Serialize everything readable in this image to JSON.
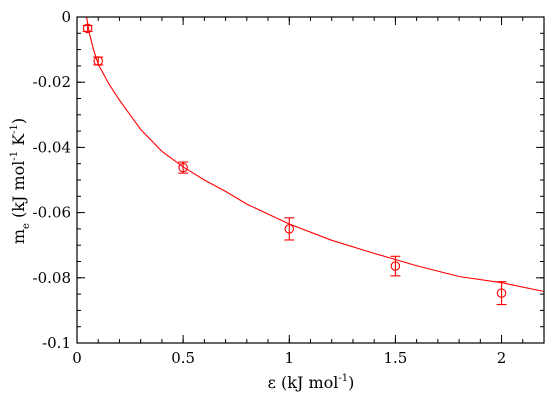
{
  "chart_data": {
    "type": "scatter",
    "title": "",
    "xlabel": {
      "main": "ε (kJ mol",
      "sup": "-1",
      "close": ")"
    },
    "ylabel": {
      "main": "m",
      "sub": "e",
      "unit_open": " (kJ mol",
      "sup1": "-1",
      "mid": " K",
      "sup2": "-1",
      "close": ")"
    },
    "xlim": [
      0,
      2.2
    ],
    "ylim": [
      -0.1,
      0
    ],
    "x_ticks": [
      {
        "value": 0,
        "label": "0"
      },
      {
        "value": 0.5,
        "label": "0.5"
      },
      {
        "value": 1,
        "label": "1"
      },
      {
        "value": 1.5,
        "label": "1.5"
      },
      {
        "value": 2,
        "label": "2"
      }
    ],
    "y_ticks": [
      {
        "value": 0,
        "label": "0"
      },
      {
        "value": -0.02,
        "label": "-0.02"
      },
      {
        "value": -0.04,
        "label": "-0.04"
      },
      {
        "value": -0.06,
        "label": "-0.06"
      },
      {
        "value": -0.08,
        "label": "-0.08"
      },
      {
        "value": -0.1,
        "label": "-0.1"
      }
    ],
    "x_minor_step": 0.1,
    "y_minor_step": 0.005,
    "series": [
      {
        "marker": "circle",
        "color": "#ff0000",
        "points": [
          {
            "x": 0.05,
            "y": -0.0035,
            "err": 0.0009
          },
          {
            "x": 0.1,
            "y": -0.0135,
            "err": 0.0012
          },
          {
            "x": 0.5,
            "y": -0.0462,
            "err": 0.0017
          },
          {
            "x": 1.0,
            "y": -0.065,
            "err": 0.0034
          },
          {
            "x": 1.5,
            "y": -0.0764,
            "err": 0.003
          },
          {
            "x": 2.0,
            "y": -0.0847,
            "err": 0.0035
          }
        ]
      }
    ],
    "fit_curve": {
      "color": "#ff0000",
      "points": [
        {
          "x": 0.045,
          "y": 0.0
        },
        {
          "x": 0.06,
          "y": -0.0055
        },
        {
          "x": 0.08,
          "y": -0.0105
        },
        {
          "x": 0.1,
          "y": -0.0145
        },
        {
          "x": 0.15,
          "y": -0.0205
        },
        {
          "x": 0.2,
          "y": -0.0255
        },
        {
          "x": 0.3,
          "y": -0.0345
        },
        {
          "x": 0.4,
          "y": -0.0412
        },
        {
          "x": 0.5,
          "y": -0.046
        },
        {
          "x": 0.6,
          "y": -0.05
        },
        {
          "x": 0.7,
          "y": -0.0535
        },
        {
          "x": 0.8,
          "y": -0.0574
        },
        {
          "x": 1.0,
          "y": -0.0635
        },
        {
          "x": 1.2,
          "y": -0.0685
        },
        {
          "x": 1.4,
          "y": -0.0725
        },
        {
          "x": 1.6,
          "y": -0.0763
        },
        {
          "x": 1.8,
          "y": -0.0796
        },
        {
          "x": 2.0,
          "y": -0.0815
        },
        {
          "x": 2.2,
          "y": -0.0842
        }
      ]
    }
  }
}
